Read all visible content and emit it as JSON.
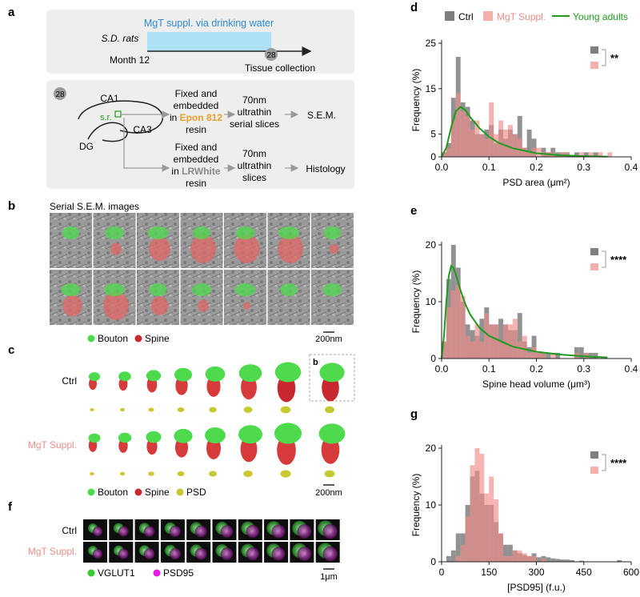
{
  "colors": {
    "ctrl": "#7f7f7f",
    "mgt": "#f08c88",
    "young": "#1f9a1f",
    "bar": "#aee0f7",
    "bouton": "#4ddb4d",
    "spine": "#c8282d",
    "psd": "#c8c832",
    "vglut1": "#33cc33",
    "psd95": "#e619e6",
    "orange": "#e8a02a",
    "panel_bg": "#eeeeee"
  },
  "panel_a": {
    "label": "a",
    "bar_text": "MgT suppl. via drinking water",
    "rats": "S.D. rats",
    "month": "Month 12",
    "badge": "28",
    "collection": "Tissue collection",
    "badge2": "28",
    "region_ca1": "CA1",
    "region_ca3": "CA3",
    "region_dg": "DG",
    "region_sr": "s.r.",
    "row1_l1": "Fixed and",
    "row1_l2": "embedded",
    "row1_l3a": "in ",
    "row1_l3b": "Epon 812",
    "row1_l4": "resin",
    "row1_s1": "70nm",
    "row1_s2": "ultrathin",
    "row1_s3": "serial slices",
    "row1_end": "S.E.M.",
    "row2_l1": "Fixed and",
    "row2_l2": "embedded",
    "row2_l3a": "in ",
    "row2_l3b": "LRWhite",
    "row2_l4": "resin",
    "row2_s1": "70nm",
    "row2_s2": "ultrathin",
    "row2_s3": "slices",
    "row2_end": "Histology"
  },
  "panel_b": {
    "label": "b",
    "title": "Serial S.E.M. images",
    "legend_bouton": "Bouton",
    "legend_spine": "Spine",
    "scale": "200nm"
  },
  "panel_c": {
    "label": "c",
    "row_ctrl": "Ctrl",
    "row_mgt": "MgT Suppl.",
    "inset_label": "b",
    "legend_bouton": "Bouton",
    "legend_spine": "Spine",
    "legend_psd": "PSD",
    "scale": "200nm"
  },
  "panel_f": {
    "label": "f",
    "row_ctrl": "Ctrl",
    "row_mgt": "MgT Suppl.",
    "legend_vglut1": "VGLUT1",
    "legend_psd95": "PSD95",
    "scale": "1μm"
  },
  "legend_top": {
    "ctrl": "Ctrl",
    "mgt": "MgT Suppl.",
    "young": "Young adults"
  },
  "chart_data": [
    {
      "panel": "d",
      "type": "histogram",
      "xlabel": "PSD area (μm²)",
      "ylabel": "Frequency (%)",
      "xlim": [
        0,
        0.4
      ],
      "ylim": [
        0,
        25
      ],
      "xticks": [
        "0.0",
        "0.1",
        "0.2",
        "0.3",
        "0.4"
      ],
      "yticks": [
        "0",
        "5",
        "15",
        "25"
      ],
      "ytick_values": [
        0,
        5,
        15,
        25
      ],
      "bin_width": 0.01,
      "significance": "**",
      "series": [
        {
          "name": "Ctrl",
          "start": 0.0,
          "values": [
            1,
            3,
            13,
            22,
            12,
            11,
            8,
            5,
            5,
            6,
            7,
            3,
            6,
            4,
            6,
            5,
            9,
            2,
            6,
            4,
            0,
            2,
            1,
            2,
            1,
            1,
            1,
            0,
            1,
            0,
            1,
            0,
            1
          ]
        },
        {
          "name": "MgT Suppl.",
          "start": 0.0,
          "values": [
            1,
            2,
            8,
            14,
            10,
            9,
            6,
            8,
            5,
            4,
            12,
            5,
            8,
            6,
            7,
            5,
            4,
            2,
            1,
            2,
            2,
            1,
            1,
            1,
            0,
            1,
            1,
            0,
            0,
            1,
            0,
            1,
            0,
            1,
            0,
            1
          ]
        },
        {
          "name": "Young adults",
          "kind": "curve",
          "x": [
            0.0,
            0.01,
            0.02,
            0.03,
            0.04,
            0.05,
            0.06,
            0.08,
            0.1,
            0.12,
            0.15,
            0.2,
            0.25,
            0.3,
            0.35
          ],
          "y": [
            0,
            2,
            6.5,
            10,
            11,
            10.3,
            8.8,
            6.3,
            4.4,
            3.1,
            1.9,
            0.8,
            0.35,
            0.15,
            0.06
          ]
        }
      ]
    },
    {
      "panel": "e",
      "type": "histogram",
      "xlabel": "Spine head volume (μm³)",
      "ylabel": "Frequency (%)",
      "xlim": [
        0,
        0.4
      ],
      "ylim": [
        0,
        20
      ],
      "xticks": [
        "0.0",
        "0.1",
        "0.2",
        "0.3",
        "0.4"
      ],
      "yticks": [
        "0",
        "10",
        "20"
      ],
      "ytick_values": [
        0,
        10,
        20
      ],
      "bin_width": 0.01,
      "significance": "****",
      "series": [
        {
          "name": "Ctrl",
          "start": 0.0,
          "values": [
            3,
            14,
            20,
            16,
            10,
            6,
            5,
            4,
            7,
            9,
            6,
            6,
            7,
            6,
            5,
            5,
            8,
            3,
            2,
            4,
            1,
            1,
            1,
            0,
            1,
            0,
            0,
            0,
            2,
            2,
            1,
            1,
            1
          ]
        },
        {
          "name": "MgT Suppl.",
          "start": 0.0,
          "values": [
            3,
            9,
            12,
            13,
            11,
            4,
            3,
            6,
            3,
            8,
            6,
            6,
            3,
            6,
            6,
            7,
            3,
            4,
            1,
            2,
            1,
            1,
            0,
            1,
            0,
            0,
            0,
            0,
            1,
            0,
            1
          ]
        },
        {
          "name": "Young adults",
          "kind": "curve",
          "x": [
            0.0,
            0.005,
            0.01,
            0.015,
            0.02,
            0.025,
            0.03,
            0.04,
            0.05,
            0.06,
            0.08,
            0.1,
            0.15,
            0.2,
            0.25,
            0.3,
            0.35
          ],
          "y": [
            0,
            4,
            10,
            14.5,
            16.3,
            16,
            14.8,
            12,
            9.6,
            7.8,
            5.4,
            4,
            2.1,
            1.2,
            0.7,
            0.4,
            0.2
          ]
        }
      ]
    },
    {
      "panel": "g",
      "type": "histogram",
      "xlabel": "[PSD95] (f.u.)",
      "ylabel": "Frequency (%)",
      "xlim": [
        0,
        600
      ],
      "ylim": [
        0,
        20
      ],
      "xticks": [
        "0",
        "150",
        "300",
        "450",
        "600"
      ],
      "yticks": [
        "0",
        "10",
        "20"
      ],
      "ytick_values": [
        0,
        10,
        20
      ],
      "bin_width": 15,
      "significance": "****",
      "series": [
        {
          "name": "Ctrl",
          "start": 0,
          "values": [
            0,
            1,
            2,
            5,
            5,
            10,
            15,
            16,
            12,
            10,
            10,
            7,
            5,
            3,
            3,
            2,
            1.5,
            1.2,
            1,
            1.5,
            0.8,
            1,
            0.8,
            0.6,
            0.5,
            0.4,
            0.4,
            0.3,
            0,
            0.2,
            0,
            0,
            0,
            0,
            0,
            0,
            0,
            0.3
          ]
        },
        {
          "name": "MgT Suppl.",
          "start": 0,
          "values": [
            0,
            0,
            0,
            1,
            3,
            8,
            17,
            20,
            19,
            12,
            15,
            11,
            5,
            1,
            1,
            2,
            2,
            1.5,
            1,
            1,
            0,
            0.5
          ]
        }
      ]
    }
  ]
}
